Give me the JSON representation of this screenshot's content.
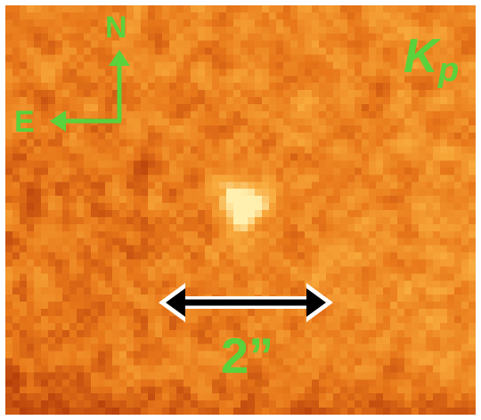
{
  "compass": {
    "north_label": "N",
    "east_label": "E",
    "arrow_color": "#5ad23c"
  },
  "band": {
    "letter": "K",
    "subscript": "p",
    "color": "#5ad23c"
  },
  "scale_bar": {
    "label": "2”",
    "arrow_color": "#000000",
    "outline_color": "#ffffff"
  },
  "colors": {
    "label_green": "#5ad23c",
    "colormap": [
      "#5a0a05",
      "#b43c0a",
      "#e8781a",
      "#f8a83a",
      "#fff0b0"
    ]
  }
}
